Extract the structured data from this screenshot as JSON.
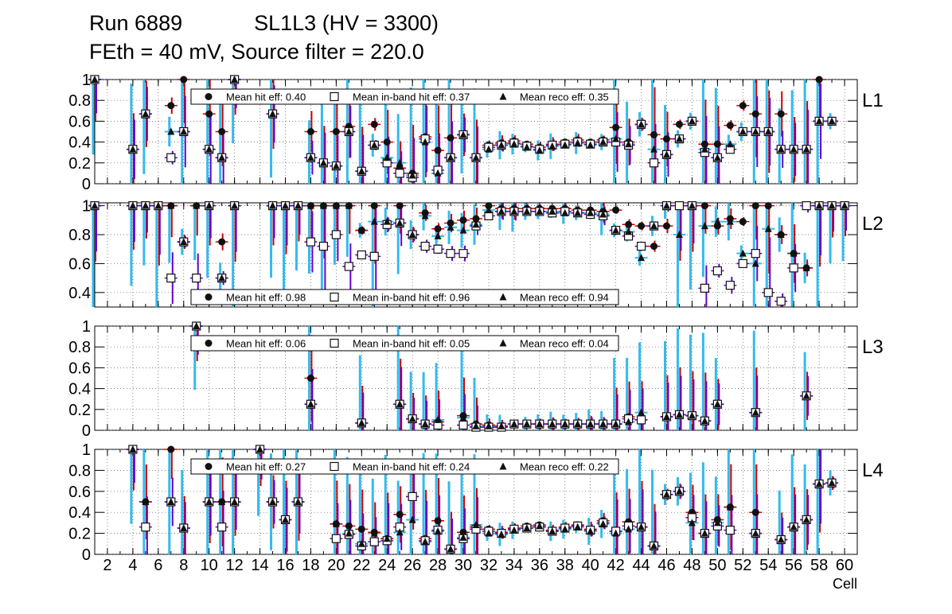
{
  "title": {
    "line1": "Run 6889            SL1L3 (HV = 3300)",
    "line2": "FEth = 40 mV, Source filter = 220.0"
  },
  "chart_data": {
    "type": "scatter",
    "xlabel": "Cell",
    "xlim": [
      1,
      61
    ],
    "x_ticks": [
      2,
      4,
      6,
      8,
      10,
      12,
      14,
      16,
      18,
      20,
      22,
      24,
      26,
      28,
      30,
      32,
      34,
      36,
      38,
      40,
      42,
      44,
      46,
      48,
      50,
      52,
      54,
      56,
      58,
      60
    ],
    "marker_meaning": {
      "circle": "Mean hit  eff",
      "open-square": "Mean in-band hit eff",
      "triangle": "Mean reco eff"
    },
    "panels": [
      {
        "label": "L1",
        "ylim": [
          0,
          1
        ],
        "y_ticks": [
          "0",
          "0.2",
          "0.4",
          "0.6",
          "0.8",
          "1"
        ],
        "legend": {
          "hit": "Mean hit  eff: 0.40",
          "inband": "Mean in-band hit eff: 0.37",
          "reco": "Mean reco eff: 0.35"
        },
        "cells": [
          1,
          4,
          5,
          7,
          8,
          10,
          11,
          12,
          15,
          18,
          19,
          20,
          21,
          22,
          23,
          24,
          25,
          26,
          27,
          28,
          29,
          30,
          31,
          32,
          33,
          34,
          35,
          36,
          37,
          38,
          39,
          40,
          41,
          42,
          43,
          44,
          45,
          46,
          47,
          48,
          49,
          50,
          51,
          52,
          53,
          54,
          55,
          56,
          57,
          58,
          59
        ],
        "hit": [
          1.0,
          0.33,
          0.67,
          0.75,
          1.0,
          0.67,
          0.5,
          1.0,
          0.67,
          0.5,
          0.2,
          0.5,
          0.55,
          0.12,
          0.57,
          0.4,
          0.15,
          0.1,
          0.45,
          0.32,
          0.44,
          0.47,
          0.25,
          0.37,
          0.39,
          0.41,
          0.38,
          0.35,
          0.38,
          0.4,
          0.42,
          0.4,
          0.42,
          0.54,
          0.4,
          0.57,
          0.47,
          0.43,
          0.57,
          0.6,
          0.38,
          0.38,
          0.56,
          0.75,
          0.67,
          0.5,
          0.67,
          0.33,
          0.33,
          1.0,
          0.6
        ],
        "inband": [
          1.0,
          0.33,
          0.67,
          0.25,
          0.5,
          0.33,
          0.25,
          1.0,
          0.67,
          0.25,
          0.2,
          0.17,
          0.5,
          0.12,
          0.37,
          0.2,
          0.1,
          0.06,
          0.43,
          0.13,
          0.25,
          0.47,
          0.25,
          0.35,
          0.37,
          0.39,
          0.36,
          0.33,
          0.37,
          0.38,
          0.4,
          0.38,
          0.4,
          0.4,
          0.37,
          0.57,
          0.2,
          0.28,
          0.43,
          0.6,
          0.3,
          0.25,
          0.33,
          0.5,
          0.5,
          0.5,
          0.33,
          0.33,
          0.33,
          0.6,
          0.6
        ],
        "reco": [
          1.0,
          0.33,
          0.67,
          0.5,
          0.5,
          0.33,
          0.25,
          1.0,
          0.67,
          0.25,
          0.2,
          0.17,
          0.5,
          0.12,
          0.37,
          0.25,
          0.2,
          0.08,
          0.4,
          0.1,
          0.25,
          0.47,
          0.25,
          0.33,
          0.37,
          0.38,
          0.35,
          0.32,
          0.36,
          0.37,
          0.39,
          0.37,
          0.4,
          0.43,
          0.38,
          0.57,
          0.33,
          0.28,
          0.43,
          0.6,
          0.33,
          0.25,
          0.38,
          0.5,
          0.5,
          0.5,
          0.33,
          0.33,
          0.33,
          0.6,
          0.6
        ]
      },
      {
        "label": "L2",
        "ylim": [
          0.3,
          1.02
        ],
        "y_ticks": [
          "0.4",
          "0.6",
          "0.8",
          "1"
        ],
        "legend": {
          "hit": "Mean hit  eff: 0.98",
          "inband": "Mean in-band hit eff: 0.96",
          "reco": "Mean reco eff: 0.94"
        },
        "cells": [
          1,
          4,
          5,
          6,
          7,
          8,
          9,
          10,
          11,
          12,
          15,
          16,
          17,
          18,
          19,
          20,
          21,
          22,
          23,
          24,
          25,
          26,
          27,
          28,
          29,
          30,
          31,
          32,
          33,
          34,
          35,
          36,
          37,
          38,
          39,
          40,
          41,
          42,
          43,
          44,
          45,
          46,
          47,
          48,
          49,
          50,
          51,
          52,
          53,
          54,
          55,
          56,
          57,
          58,
          59,
          60
        ],
        "hit": [
          1.0,
          1.0,
          1.0,
          1.0,
          1.0,
          0.75,
          1.0,
          1.0,
          0.75,
          1.0,
          1.0,
          1.0,
          1.0,
          1.0,
          1.0,
          1.0,
          1.0,
          0.83,
          1.0,
          0.87,
          1.0,
          0.8,
          0.95,
          0.84,
          0.88,
          0.9,
          0.91,
          1.0,
          0.98,
          0.98,
          0.98,
          0.98,
          0.98,
          0.98,
          0.97,
          0.97,
          0.96,
          0.97,
          0.87,
          0.86,
          0.72,
          0.86,
          1.0,
          1.0,
          1.0,
          0.86,
          0.91,
          0.89,
          1.0,
          1.0,
          0.8,
          0.67,
          0.57,
          1.0,
          1.0,
          1.0
        ],
        "inband": [
          1.0,
          1.0,
          1.0,
          1.0,
          0.5,
          0.75,
          0.5,
          1.0,
          0.5,
          1.0,
          1.0,
          1.0,
          1.0,
          0.75,
          0.72,
          0.8,
          0.58,
          0.66,
          0.65,
          0.87,
          0.88,
          0.8,
          0.72,
          0.7,
          0.67,
          0.67,
          0.86,
          0.93,
          0.96,
          0.96,
          0.96,
          0.96,
          0.95,
          0.96,
          0.95,
          0.94,
          0.93,
          0.83,
          0.79,
          0.72,
          0.86,
          1.0,
          1.0,
          1.0,
          0.43,
          0.55,
          0.45,
          0.6,
          0.67,
          0.4,
          0.34,
          0.57,
          1.0,
          1.0,
          1.0,
          1.0
        ],
        "reco": [
          1.0,
          1.0,
          1.0,
          1.0,
          1.0,
          0.75,
          1.0,
          1.0,
          0.5,
          1.0,
          1.0,
          1.0,
          1.0,
          1.0,
          1.0,
          1.0,
          1.0,
          0.83,
          0.89,
          0.89,
          0.88,
          0.8,
          0.93,
          0.79,
          0.85,
          0.83,
          0.87,
          0.97,
          0.96,
          0.96,
          0.96,
          0.96,
          0.96,
          0.95,
          0.95,
          0.95,
          0.94,
          0.83,
          0.82,
          0.64,
          0.86,
          1.0,
          0.8,
          1.0,
          0.86,
          0.89,
          0.89,
          0.67,
          0.6,
          0.84,
          0.8,
          0.67,
          0.57,
          1.0,
          1.0,
          1.0
        ],
        "legend_position": "bottom"
      },
      {
        "label": "L3",
        "ylim": [
          0,
          1
        ],
        "y_ticks": [
          "0",
          "0.2",
          "0.4",
          "0.6",
          "0.8",
          "1"
        ],
        "legend": {
          "hit": "Mean hit  eff: 0.06",
          "inband": "Mean in-band hit eff: 0.05",
          "reco": "Mean reco eff: 0.04"
        },
        "cells": [
          9,
          18,
          22,
          25,
          26,
          27,
          28,
          30,
          31,
          32,
          33,
          34,
          35,
          36,
          37,
          38,
          39,
          40,
          41,
          42,
          43,
          44,
          46,
          47,
          48,
          49,
          50,
          53,
          57
        ],
        "hit": [
          1.0,
          0.5,
          0.07,
          0.25,
          0.11,
          0.06,
          0.08,
          0.14,
          0.06,
          0.05,
          0.04,
          0.06,
          0.06,
          0.06,
          0.06,
          0.06,
          0.06,
          0.06,
          0.06,
          0.06,
          0.13,
          0.1,
          0.13,
          0.15,
          0.14,
          0.09,
          0.25,
          0.17,
          0.33
        ],
        "inband": [
          1.0,
          0.25,
          0.07,
          0.25,
          0.11,
          0.06,
          0.05,
          0.05,
          0.03,
          0.03,
          0.03,
          0.06,
          0.06,
          0.06,
          0.06,
          0.06,
          0.06,
          0.06,
          0.06,
          0.06,
          0.11,
          0.1,
          0.13,
          0.15,
          0.14,
          0.09,
          0.25,
          0.17,
          0.33
        ],
        "reco": [
          1.0,
          0.25,
          0.07,
          0.25,
          0.11,
          0.06,
          0.1,
          0.12,
          0.04,
          0.04,
          0.04,
          0.06,
          0.06,
          0.06,
          0.06,
          0.06,
          0.06,
          0.06,
          0.06,
          0.06,
          0.08,
          0.17,
          0.13,
          0.15,
          0.14,
          0.09,
          0.25,
          0.17,
          0.33
        ]
      },
      {
        "label": "L4",
        "ylim": [
          0,
          1
        ],
        "y_ticks": [
          "0",
          "0.2",
          "0.4",
          "0.6",
          "0.8",
          "1"
        ],
        "legend": {
          "hit": "Mean hit  eff: 0.27",
          "inband": "Mean in-band hit eff: 0.24",
          "reco": "Mean reco eff: 0.22"
        },
        "cells": [
          4,
          5,
          7,
          8,
          10,
          11,
          12,
          14,
          15,
          16,
          17,
          20,
          21,
          22,
          23,
          24,
          25,
          26,
          27,
          28,
          29,
          30,
          31,
          32,
          33,
          34,
          35,
          36,
          37,
          38,
          39,
          40,
          41,
          42,
          43,
          44,
          45,
          46,
          47,
          48,
          49,
          50,
          51,
          53,
          55,
          56,
          57,
          58,
          59
        ],
        "hit": [
          1.0,
          0.5,
          1.0,
          0.25,
          0.5,
          0.5,
          0.5,
          1.0,
          0.5,
          0.33,
          0.5,
          0.29,
          0.27,
          0.24,
          0.21,
          0.15,
          0.38,
          0.55,
          0.15,
          0.32,
          0.05,
          0.21,
          0.26,
          0.24,
          0.21,
          0.25,
          0.27,
          0.28,
          0.23,
          0.26,
          0.28,
          0.24,
          0.32,
          0.22,
          0.31,
          0.26,
          0.08,
          0.57,
          0.6,
          0.4,
          0.2,
          0.33,
          0.45,
          0.4,
          0.14,
          0.26,
          0.33,
          0.67,
          0.68
        ],
        "inband": [
          1.0,
          0.26,
          0.5,
          0.25,
          0.5,
          0.26,
          0.5,
          1.0,
          0.5,
          0.33,
          0.5,
          0.15,
          0.19,
          0.08,
          0.12,
          0.13,
          0.26,
          0.55,
          0.13,
          0.23,
          0.05,
          0.15,
          0.24,
          0.22,
          0.2,
          0.24,
          0.25,
          0.26,
          0.22,
          0.25,
          0.27,
          0.23,
          0.3,
          0.22,
          0.27,
          0.26,
          0.08,
          0.57,
          0.6,
          0.35,
          0.2,
          0.27,
          0.23,
          0.2,
          0.14,
          0.26,
          0.33,
          0.67,
          0.68
        ],
        "reco": [
          1.0,
          0.5,
          0.5,
          0.25,
          0.5,
          0.5,
          0.5,
          1.0,
          0.5,
          0.33,
          0.5,
          0.29,
          0.2,
          0.1,
          0.2,
          0.15,
          0.21,
          0.33,
          0.12,
          0.22,
          0.05,
          0.16,
          0.28,
          0.2,
          0.19,
          0.23,
          0.25,
          0.27,
          0.22,
          0.24,
          0.26,
          0.22,
          0.29,
          0.2,
          0.24,
          0.26,
          0.08,
          0.57,
          0.6,
          0.3,
          0.2,
          0.3,
          0.45,
          0.2,
          0.14,
          0.26,
          0.33,
          0.67,
          0.68
        ]
      }
    ]
  }
}
